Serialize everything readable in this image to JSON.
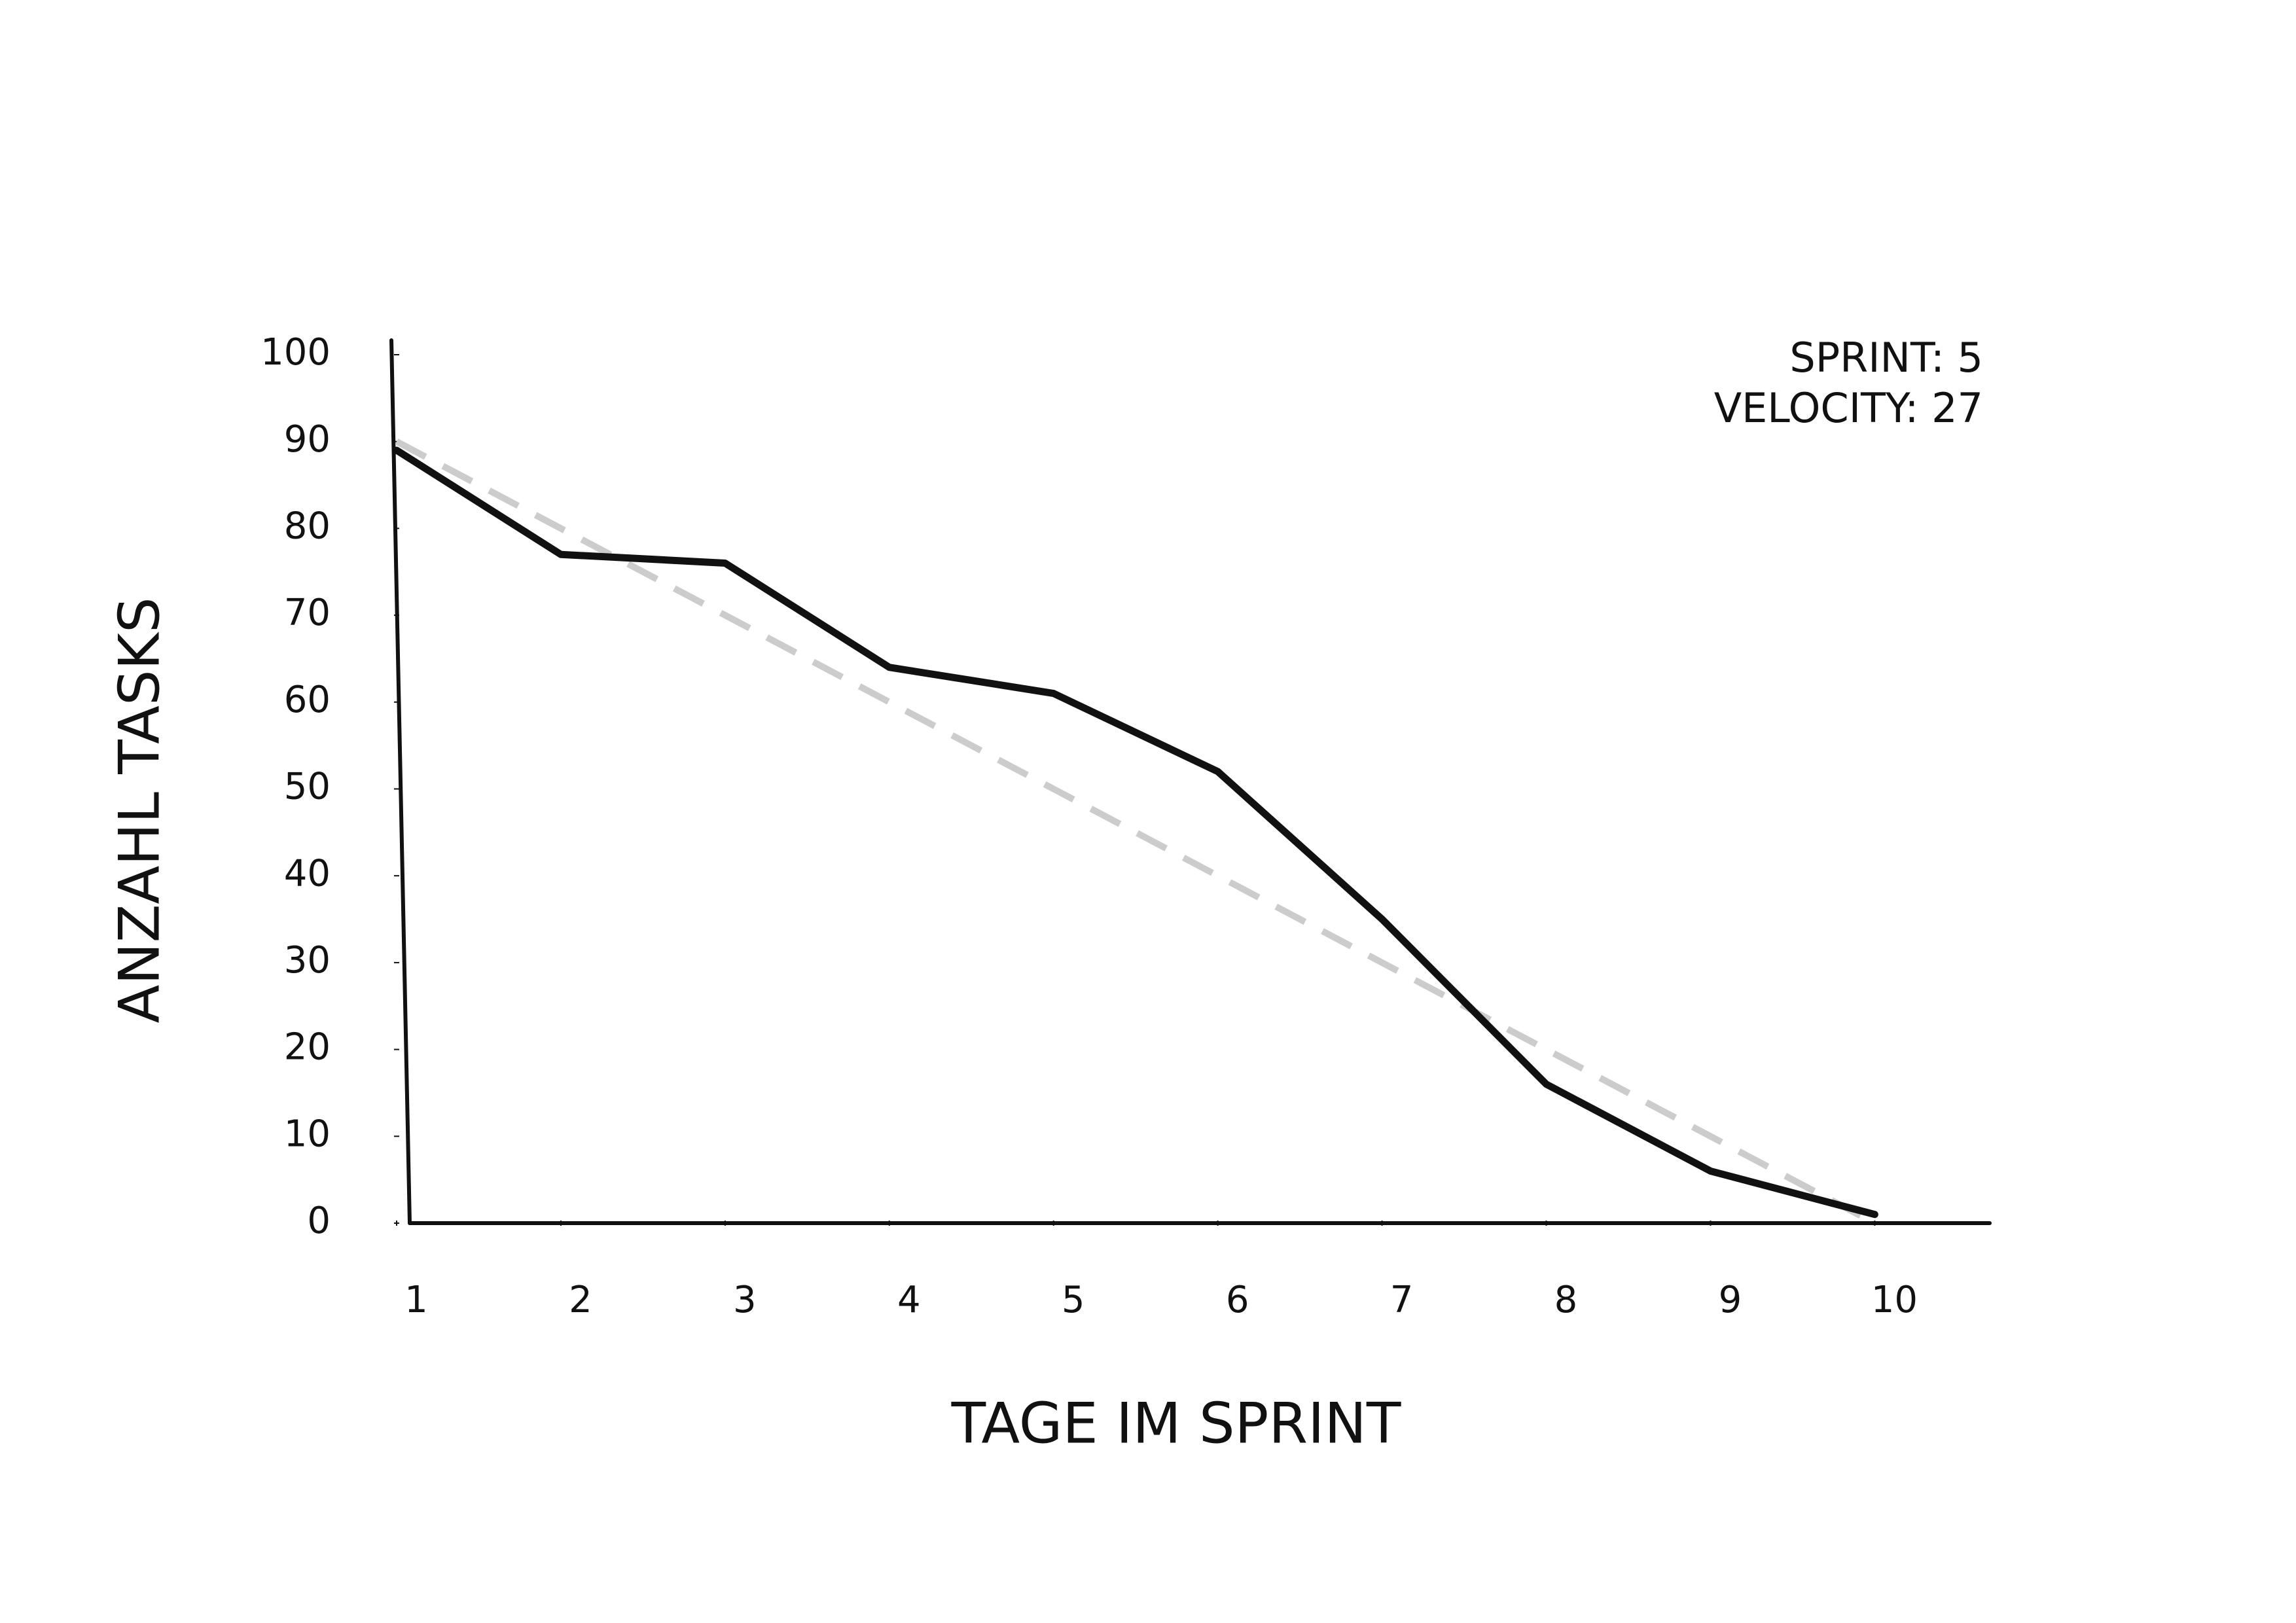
{
  "chart_data": {
    "type": "line",
    "x_label": "TAGE IM SPRINT",
    "y_label": "ANZAHL TASKS",
    "annotations": [
      "SPRINT: 5",
      "VELOCITY: 27"
    ],
    "x": [
      1,
      2,
      3,
      4,
      5,
      6,
      7,
      8,
      9,
      10
    ],
    "series": [
      {
        "color": "#cccccc",
        "line_style": "dashed",
        "values": [
          90,
          80,
          70,
          60,
          50,
          40,
          30,
          20,
          10,
          0
        ]
      },
      {
        "color": "#111111",
        "line_style": "solid",
        "values": [
          89,
          77,
          76,
          64,
          61,
          52,
          35,
          16,
          6,
          1
        ]
      }
    ],
    "xlim": [
      1,
      10.7
    ],
    "xticks": [
      1,
      2,
      3,
      4,
      5,
      6,
      7,
      8,
      9,
      10
    ],
    "ylim": [
      0,
      100
    ],
    "yticks": [
      0,
      10,
      20,
      30,
      40,
      50,
      60,
      70,
      80,
      90,
      100
    ],
    "grid": false
  }
}
